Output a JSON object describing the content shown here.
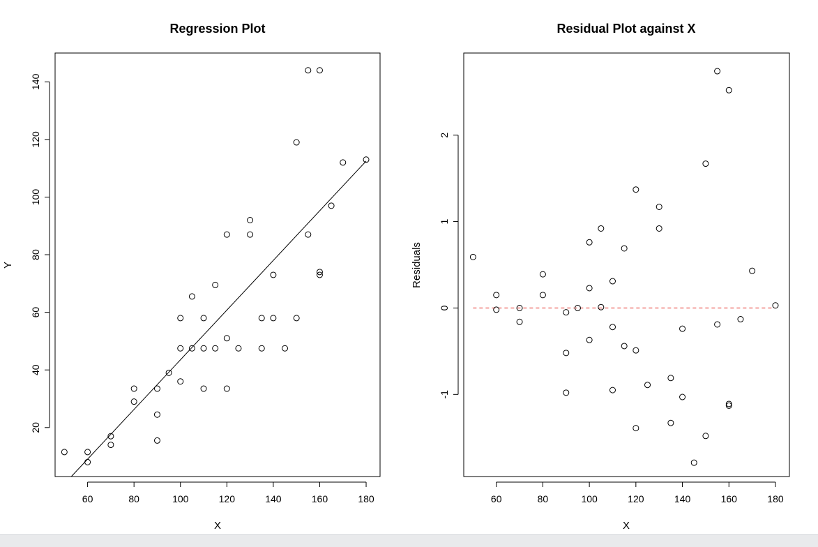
{
  "chart_data": [
    {
      "type": "scatter",
      "title": "Regression Plot",
      "xlabel": "X",
      "ylabel": "Y",
      "xlim": [
        46,
        186
      ],
      "ylim": [
        3,
        150
      ],
      "xticks": [
        60,
        80,
        100,
        120,
        140,
        160,
        180
      ],
      "yticks": [
        20,
        40,
        60,
        80,
        100,
        120,
        140
      ],
      "grid": false,
      "series": [
        {
          "points": [
            [
              50,
              11.5
            ],
            [
              60,
              11.5
            ],
            [
              60,
              8
            ],
            [
              70,
              17
            ],
            [
              70,
              14
            ],
            [
              80,
              33.5
            ],
            [
              80,
              29
            ],
            [
              90,
              33.5
            ],
            [
              90,
              24.5
            ],
            [
              90,
              15.5
            ],
            [
              95,
              39
            ],
            [
              100,
              58
            ],
            [
              100,
              47.5
            ],
            [
              100,
              36
            ],
            [
              105,
              65.5
            ],
            [
              105,
              47.5
            ],
            [
              110,
              58
            ],
            [
              110,
              47.5
            ],
            [
              110,
              33.5
            ],
            [
              115,
              69.5
            ],
            [
              115,
              47.5
            ],
            [
              120,
              87
            ],
            [
              120,
              51
            ],
            [
              120,
              33.5
            ],
            [
              125,
              47.5
            ],
            [
              130,
              92
            ],
            [
              130,
              87
            ],
            [
              135,
              58
            ],
            [
              135,
              47.5
            ],
            [
              140,
              73
            ],
            [
              140,
              58
            ],
            [
              145,
              47.5
            ],
            [
              150,
              119
            ],
            [
              150,
              58
            ],
            [
              155,
              144
            ],
            [
              155,
              87
            ],
            [
              160,
              144
            ],
            [
              160,
              74
            ],
            [
              160,
              73
            ],
            [
              165,
              97
            ],
            [
              170,
              112
            ],
            [
              180,
              113
            ]
          ]
        }
      ],
      "fit_line": {
        "x": [
          53,
          180
        ],
        "y": [
          3,
          112.5
        ],
        "color": "#000000"
      }
    },
    {
      "type": "scatter",
      "title": "Residual Plot against X",
      "xlabel": "X",
      "ylabel": "Residuals",
      "xlim": [
        46,
        186
      ],
      "ylim": [
        -1.95,
        2.95
      ],
      "xticks": [
        60,
        80,
        100,
        120,
        140,
        160,
        180
      ],
      "yticks": [
        -1,
        0,
        1,
        2
      ],
      "grid": false,
      "series": [
        {
          "points": [
            [
              50,
              0.59
            ],
            [
              60,
              0.15
            ],
            [
              60,
              -0.02
            ],
            [
              70,
              0.0
            ],
            [
              70,
              -0.16
            ],
            [
              80,
              0.39
            ],
            [
              80,
              0.15
            ],
            [
              90,
              -0.05
            ],
            [
              90,
              -0.52
            ],
            [
              90,
              -0.98
            ],
            [
              95,
              0.0
            ],
            [
              100,
              0.76
            ],
            [
              100,
              0.23
            ],
            [
              100,
              -0.37
            ],
            [
              105,
              0.92
            ],
            [
              105,
              0.01
            ],
            [
              110,
              0.31
            ],
            [
              110,
              -0.22
            ],
            [
              110,
              -0.95
            ],
            [
              115,
              0.69
            ],
            [
              115,
              -0.44
            ],
            [
              120,
              1.37
            ],
            [
              120,
              -0.49
            ],
            [
              120,
              -1.39
            ],
            [
              125,
              -0.89
            ],
            [
              130,
              1.17
            ],
            [
              130,
              0.92
            ],
            [
              135,
              -0.81
            ],
            [
              135,
              -1.33
            ],
            [
              140,
              -0.24
            ],
            [
              140,
              -1.03
            ],
            [
              145,
              -1.79
            ],
            [
              150,
              1.67
            ],
            [
              150,
              -1.48
            ],
            [
              155,
              2.74
            ],
            [
              155,
              -0.19
            ],
            [
              160,
              2.52
            ],
            [
              160,
              -1.11
            ],
            [
              160,
              -1.13
            ],
            [
              165,
              -0.13
            ],
            [
              170,
              0.43
            ],
            [
              180,
              0.03
            ]
          ]
        }
      ],
      "reference_line": {
        "y": 0,
        "style": "dashed",
        "color": "#e8423a"
      }
    }
  ]
}
